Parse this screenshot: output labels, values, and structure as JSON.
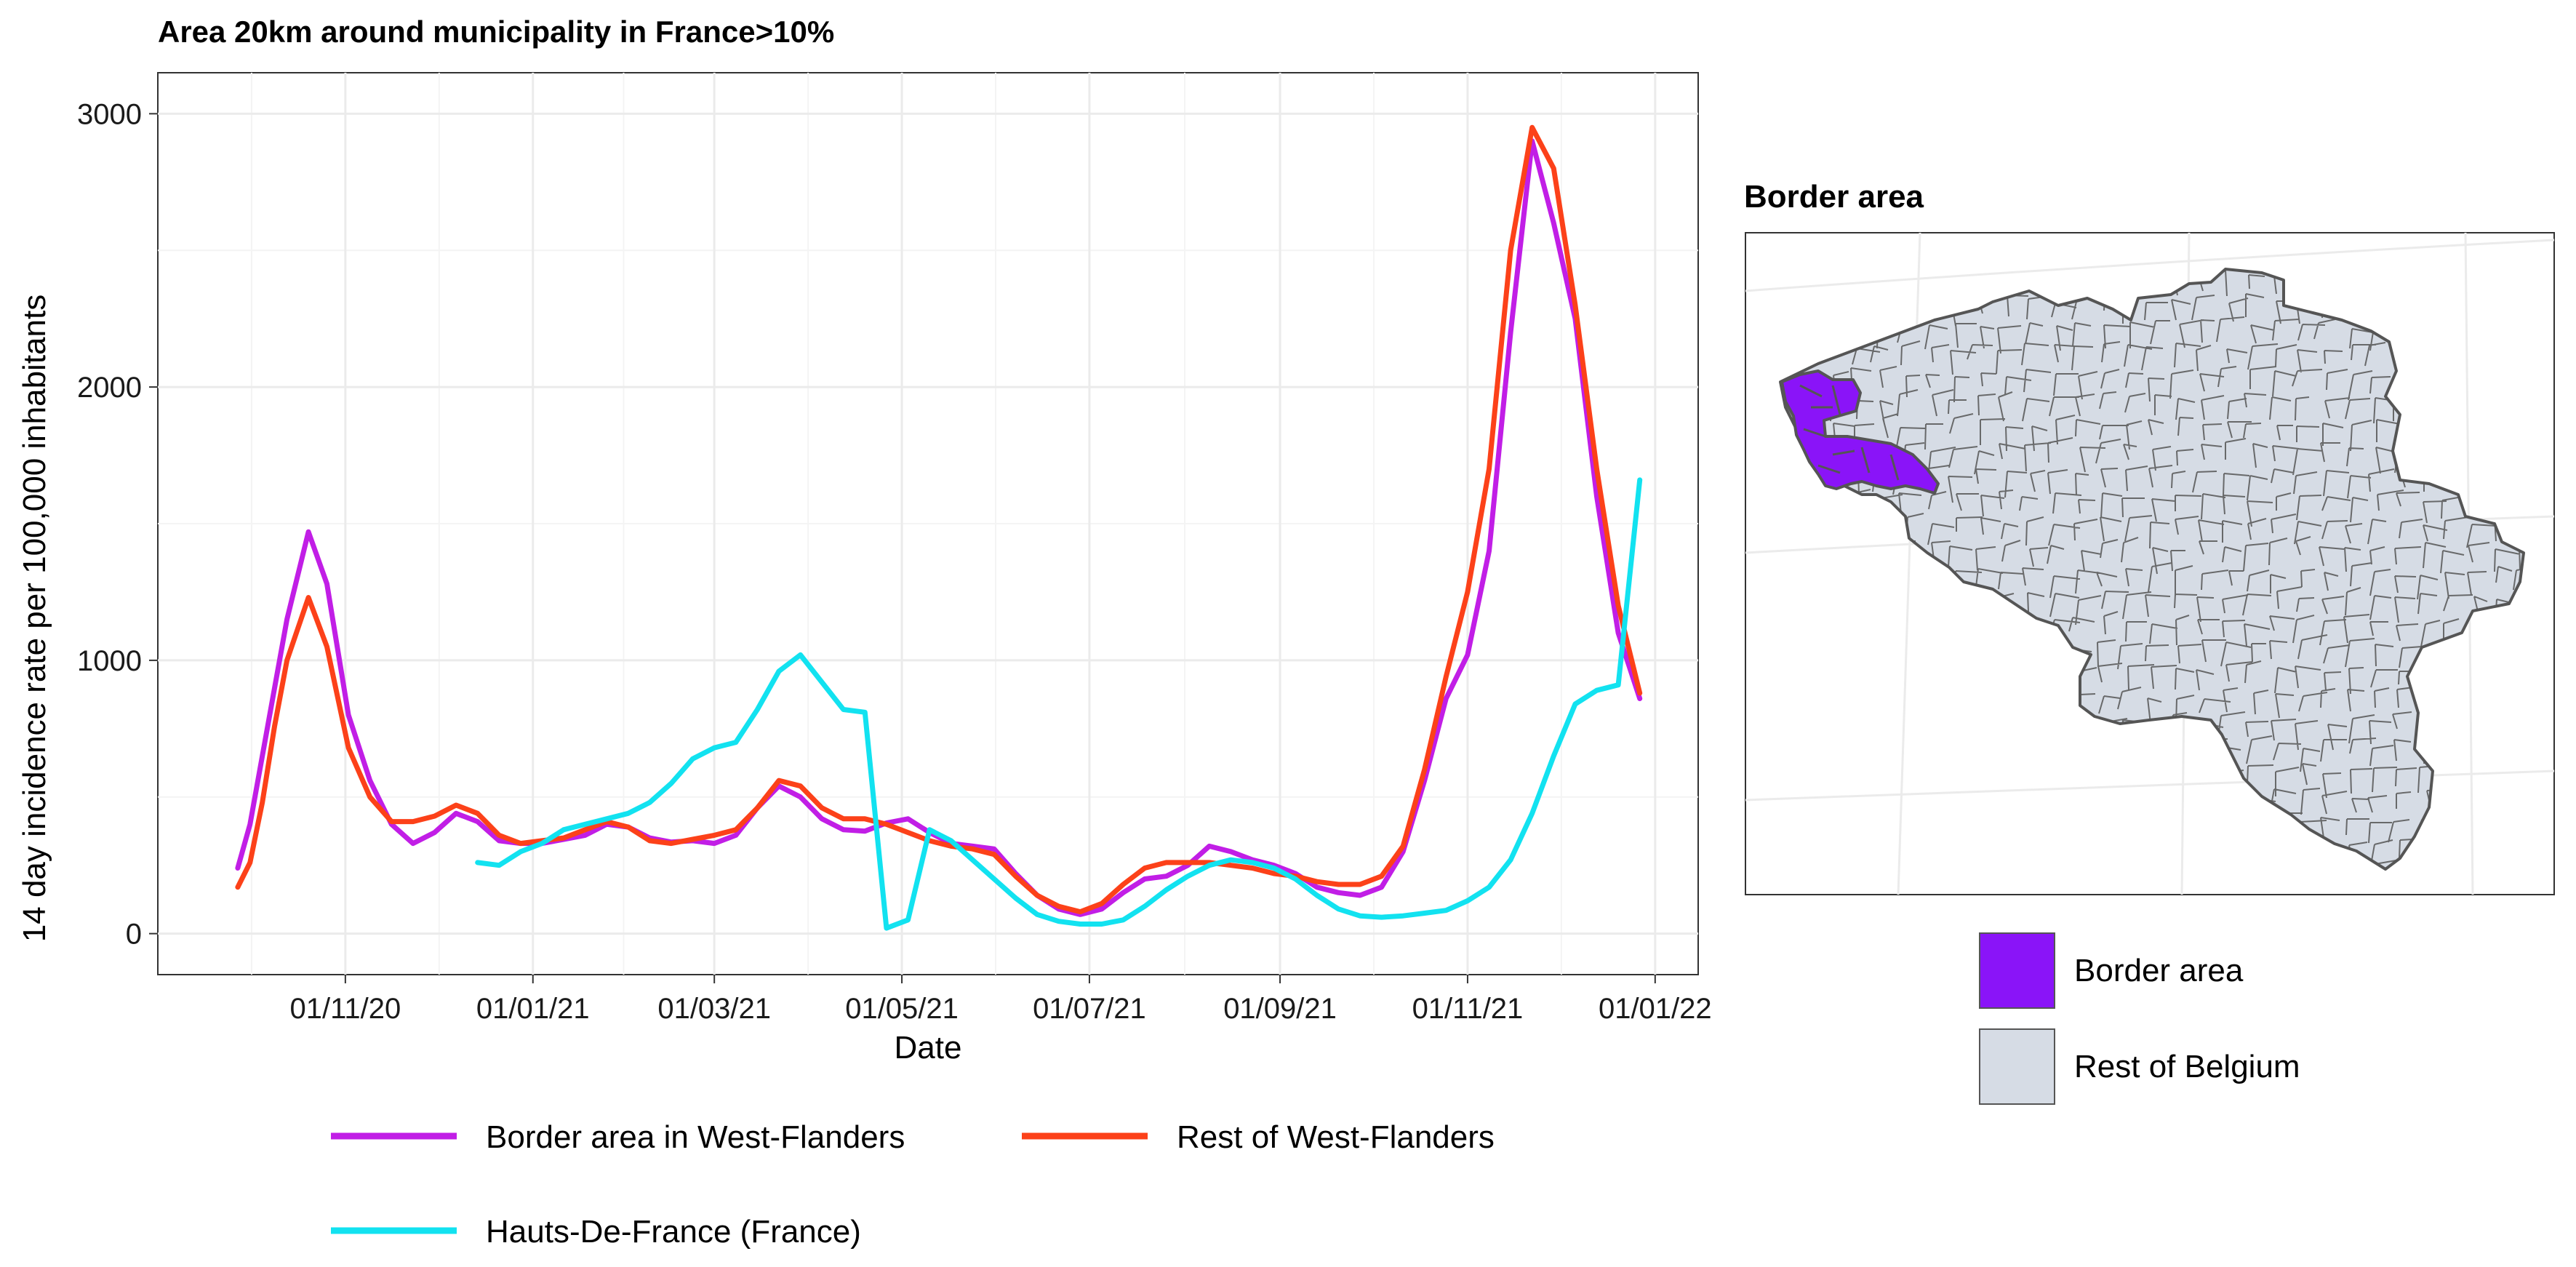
{
  "chart_data": {
    "type": "line",
    "title": "Area 20km around municipality in France>10%",
    "xlabel": "Date",
    "ylabel": "14 day incidence rate per 100,000 inhabitants",
    "x_ticks": [
      "01/11/20",
      "01/01/21",
      "01/03/21",
      "01/05/21",
      "01/07/21",
      "01/09/21",
      "01/11/21",
      "01/01/22"
    ],
    "x_range": [
      "2020-09-01",
      "2022-01-15"
    ],
    "y_ticks": [
      0,
      1000,
      2000,
      3000
    ],
    "ylim": [
      -150,
      3150
    ],
    "grid": true,
    "legend_position": "bottom",
    "series": [
      {
        "name": "Border area in West-Flanders",
        "color": "#c11ee6",
        "points": [
          [
            "2020-09-27",
            240
          ],
          [
            "2020-10-01",
            400
          ],
          [
            "2020-10-05",
            650
          ],
          [
            "2020-10-09",
            900
          ],
          [
            "2020-10-13",
            1150
          ],
          [
            "2020-10-20",
            1470
          ],
          [
            "2020-10-26",
            1280
          ],
          [
            "2020-11-02",
            800
          ],
          [
            "2020-11-09",
            560
          ],
          [
            "2020-11-16",
            400
          ],
          [
            "2020-11-23",
            330
          ],
          [
            "2020-11-30",
            370
          ],
          [
            "2020-12-07",
            440
          ],
          [
            "2020-12-14",
            410
          ],
          [
            "2020-12-21",
            340
          ],
          [
            "2020-12-28",
            330
          ],
          [
            "2021-01-04",
            330
          ],
          [
            "2021-01-11",
            345
          ],
          [
            "2021-01-18",
            360
          ],
          [
            "2021-01-25",
            400
          ],
          [
            "2021-02-01",
            390
          ],
          [
            "2021-02-08",
            350
          ],
          [
            "2021-02-15",
            335
          ],
          [
            "2021-02-22",
            340
          ],
          [
            "2021-03-01",
            330
          ],
          [
            "2021-03-08",
            360
          ],
          [
            "2021-03-15",
            460
          ],
          [
            "2021-03-22",
            540
          ],
          [
            "2021-03-29",
            500
          ],
          [
            "2021-04-05",
            420
          ],
          [
            "2021-04-12",
            380
          ],
          [
            "2021-04-19",
            375
          ],
          [
            "2021-04-26",
            405
          ],
          [
            "2021-05-03",
            420
          ],
          [
            "2021-05-10",
            370
          ],
          [
            "2021-05-17",
            330
          ],
          [
            "2021-05-24",
            320
          ],
          [
            "2021-05-31",
            310
          ],
          [
            "2021-06-07",
            220
          ],
          [
            "2021-06-14",
            140
          ],
          [
            "2021-06-21",
            90
          ],
          [
            "2021-06-28",
            70
          ],
          [
            "2021-07-05",
            90
          ],
          [
            "2021-07-12",
            150
          ],
          [
            "2021-07-19",
            200
          ],
          [
            "2021-07-26",
            210
          ],
          [
            "2021-08-02",
            250
          ],
          [
            "2021-08-09",
            320
          ],
          [
            "2021-08-16",
            300
          ],
          [
            "2021-08-23",
            270
          ],
          [
            "2021-08-30",
            250
          ],
          [
            "2021-09-06",
            220
          ],
          [
            "2021-09-13",
            170
          ],
          [
            "2021-09-20",
            150
          ],
          [
            "2021-09-27",
            140
          ],
          [
            "2021-10-04",
            170
          ],
          [
            "2021-10-11",
            300
          ],
          [
            "2021-10-18",
            560
          ],
          [
            "2021-10-25",
            860
          ],
          [
            "2021-11-01",
            1020
          ],
          [
            "2021-11-08",
            1400
          ],
          [
            "2021-11-15",
            2200
          ],
          [
            "2021-11-22",
            2900
          ],
          [
            "2021-11-29",
            2600
          ],
          [
            "2021-12-06",
            2250
          ],
          [
            "2021-12-13",
            1600
          ],
          [
            "2021-12-20",
            1100
          ],
          [
            "2021-12-27",
            860
          ]
        ]
      },
      {
        "name": "Rest of West-Flanders",
        "color": "#fc4119",
        "points": [
          [
            "2020-09-27",
            170
          ],
          [
            "2020-10-01",
            260
          ],
          [
            "2020-10-05",
            480
          ],
          [
            "2020-10-09",
            760
          ],
          [
            "2020-10-13",
            1000
          ],
          [
            "2020-10-20",
            1230
          ],
          [
            "2020-10-26",
            1050
          ],
          [
            "2020-11-02",
            680
          ],
          [
            "2020-11-09",
            500
          ],
          [
            "2020-11-16",
            410
          ],
          [
            "2020-11-23",
            410
          ],
          [
            "2020-11-30",
            430
          ],
          [
            "2020-12-07",
            470
          ],
          [
            "2020-12-14",
            440
          ],
          [
            "2020-12-21",
            360
          ],
          [
            "2020-12-28",
            330
          ],
          [
            "2021-01-04",
            340
          ],
          [
            "2021-01-11",
            350
          ],
          [
            "2021-01-18",
            380
          ],
          [
            "2021-01-25",
            410
          ],
          [
            "2021-02-01",
            390
          ],
          [
            "2021-02-08",
            340
          ],
          [
            "2021-02-15",
            330
          ],
          [
            "2021-02-22",
            345
          ],
          [
            "2021-03-01",
            360
          ],
          [
            "2021-03-08",
            380
          ],
          [
            "2021-03-15",
            460
          ],
          [
            "2021-03-22",
            560
          ],
          [
            "2021-03-29",
            540
          ],
          [
            "2021-04-05",
            460
          ],
          [
            "2021-04-12",
            420
          ],
          [
            "2021-04-19",
            420
          ],
          [
            "2021-04-26",
            400
          ],
          [
            "2021-05-03",
            370
          ],
          [
            "2021-05-10",
            340
          ],
          [
            "2021-05-17",
            320
          ],
          [
            "2021-05-24",
            310
          ],
          [
            "2021-05-31",
            290
          ],
          [
            "2021-06-07",
            210
          ],
          [
            "2021-06-14",
            140
          ],
          [
            "2021-06-21",
            100
          ],
          [
            "2021-06-28",
            80
          ],
          [
            "2021-07-05",
            110
          ],
          [
            "2021-07-12",
            180
          ],
          [
            "2021-07-19",
            240
          ],
          [
            "2021-07-26",
            260
          ],
          [
            "2021-08-02",
            260
          ],
          [
            "2021-08-09",
            260
          ],
          [
            "2021-08-16",
            250
          ],
          [
            "2021-08-23",
            240
          ],
          [
            "2021-08-30",
            220
          ],
          [
            "2021-09-06",
            210
          ],
          [
            "2021-09-13",
            190
          ],
          [
            "2021-09-20",
            180
          ],
          [
            "2021-09-27",
            180
          ],
          [
            "2021-10-04",
            210
          ],
          [
            "2021-10-11",
            320
          ],
          [
            "2021-10-18",
            600
          ],
          [
            "2021-10-25",
            940
          ],
          [
            "2021-11-01",
            1250
          ],
          [
            "2021-11-08",
            1700
          ],
          [
            "2021-11-15",
            2500
          ],
          [
            "2021-11-22",
            2950
          ],
          [
            "2021-11-29",
            2800
          ],
          [
            "2021-12-06",
            2300
          ],
          [
            "2021-12-13",
            1700
          ],
          [
            "2021-12-20",
            1200
          ],
          [
            "2021-12-27",
            880
          ]
        ]
      },
      {
        "name": "Hauts-De-France (France)",
        "color": "#12e2f0",
        "points": [
          [
            "2020-12-14",
            260
          ],
          [
            "2020-12-21",
            250
          ],
          [
            "2020-12-28",
            300
          ],
          [
            "2021-01-04",
            330
          ],
          [
            "2021-01-11",
            380
          ],
          [
            "2021-01-18",
            400
          ],
          [
            "2021-01-25",
            420
          ],
          [
            "2021-02-01",
            440
          ],
          [
            "2021-02-08",
            480
          ],
          [
            "2021-02-15",
            550
          ],
          [
            "2021-02-22",
            640
          ],
          [
            "2021-03-01",
            680
          ],
          [
            "2021-03-08",
            700
          ],
          [
            "2021-03-15",
            820
          ],
          [
            "2021-03-22",
            960
          ],
          [
            "2021-03-29",
            1020
          ],
          [
            "2021-04-05",
            920
          ],
          [
            "2021-04-12",
            820
          ],
          [
            "2021-04-19",
            810
          ],
          [
            "2021-04-26",
            20
          ],
          [
            "2021-05-03",
            50
          ],
          [
            "2021-05-10",
            380
          ],
          [
            "2021-05-17",
            340
          ],
          [
            "2021-05-24",
            270
          ],
          [
            "2021-05-31",
            200
          ],
          [
            "2021-06-07",
            130
          ],
          [
            "2021-06-14",
            70
          ],
          [
            "2021-06-21",
            45
          ],
          [
            "2021-06-28",
            35
          ],
          [
            "2021-07-05",
            35
          ],
          [
            "2021-07-12",
            50
          ],
          [
            "2021-07-19",
            100
          ],
          [
            "2021-07-26",
            160
          ],
          [
            "2021-08-02",
            210
          ],
          [
            "2021-08-09",
            250
          ],
          [
            "2021-08-16",
            270
          ],
          [
            "2021-08-23",
            260
          ],
          [
            "2021-08-30",
            240
          ],
          [
            "2021-09-06",
            200
          ],
          [
            "2021-09-13",
            140
          ],
          [
            "2021-09-20",
            90
          ],
          [
            "2021-09-27",
            65
          ],
          [
            "2021-10-04",
            60
          ],
          [
            "2021-10-11",
            65
          ],
          [
            "2021-10-18",
            75
          ],
          [
            "2021-10-25",
            85
          ],
          [
            "2021-11-01",
            120
          ],
          [
            "2021-11-08",
            170
          ],
          [
            "2021-11-15",
            270
          ],
          [
            "2021-11-22",
            440
          ],
          [
            "2021-11-29",
            650
          ],
          [
            "2021-12-06",
            840
          ],
          [
            "2021-12-13",
            890
          ],
          [
            "2021-12-20",
            910
          ],
          [
            "2021-12-27",
            1660
          ]
        ]
      }
    ]
  },
  "map": {
    "title": "Border area",
    "legend": [
      {
        "label": "Border area",
        "color": "#8a14f8"
      },
      {
        "label": "Rest of Belgium",
        "color": "#d6dce5"
      }
    ],
    "outline_color": "#555555"
  }
}
